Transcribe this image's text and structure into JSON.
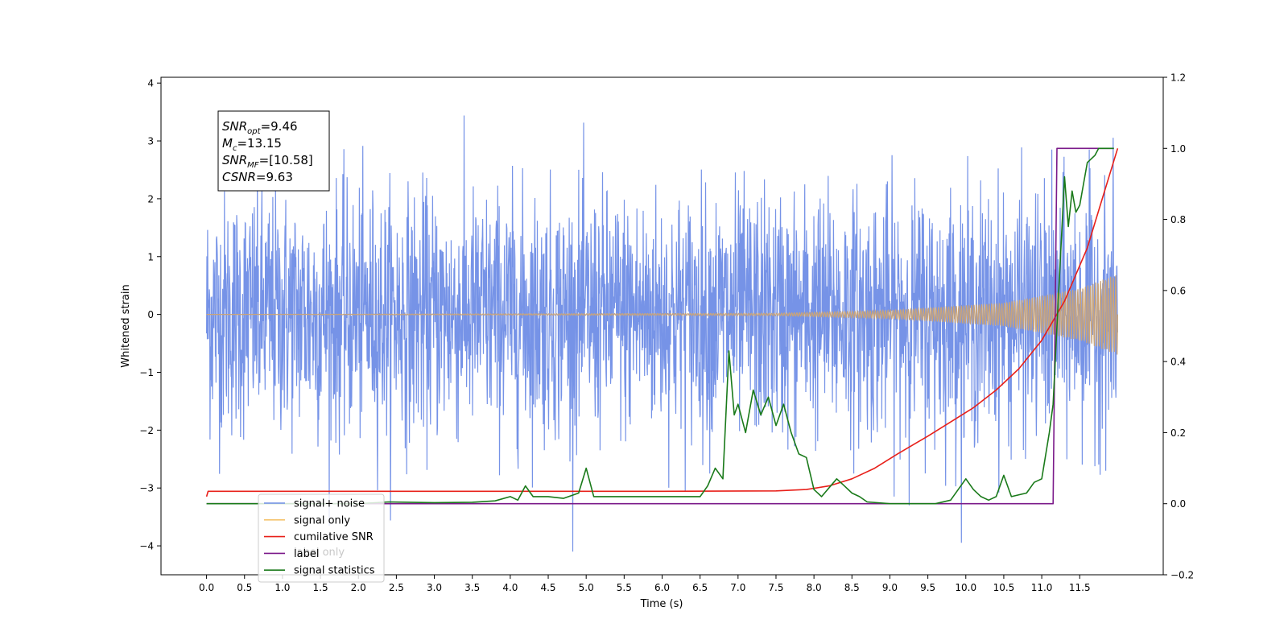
{
  "chart_data": {
    "type": "line",
    "title": "",
    "xlabel": "Time (s)",
    "ylabel_left": "Whitened strain",
    "ylabel_right": "",
    "xlim": [
      -0.6,
      12.6
    ],
    "ylim_left": [
      -4.5,
      4.1
    ],
    "ylim_right": [
      -0.2,
      1.2
    ],
    "x_ticks": [
      0.0,
      0.5,
      1.0,
      1.5,
      2.0,
      2.5,
      3.0,
      3.5,
      4.0,
      4.5,
      5.0,
      5.5,
      6.0,
      6.5,
      7.0,
      7.5,
      8.0,
      8.5,
      9.0,
      9.5,
      10.0,
      10.5,
      11.0,
      11.5
    ],
    "x_tick_labels": [
      "0.0",
      "0.5",
      "1.0",
      "1.5",
      "2.0",
      "2.5",
      "3.0",
      "3.5",
      "4.0",
      "4.5",
      "5.0",
      "5.5",
      "6.0",
      "6.5",
      "7.0",
      "7.5",
      "8.0",
      "8.5",
      "9.0",
      "9.5",
      "10.0",
      "10.5",
      "11.0",
      "11.5"
    ],
    "y_ticks_left": [
      4,
      3,
      2,
      1,
      0,
      -1,
      -2,
      -3,
      -4
    ],
    "y_tick_labels_left": [
      "4",
      "3",
      "2",
      "1",
      "0",
      "−1",
      "−2",
      "−3",
      "−4"
    ],
    "y_ticks_right": [
      1.2,
      1.0,
      0.8,
      0.6,
      0.4,
      0.2,
      0.0,
      -0.2
    ],
    "y_tick_labels_right": [
      "1.2",
      "1.0",
      "0.8",
      "0.6",
      "0.4",
      "0.2",
      "0.0",
      "−0.2"
    ],
    "grid": false,
    "legend_position": "lower-left",
    "legend": [
      {
        "label": "signal+ noise",
        "color": "#6f8de6"
      },
      {
        "label": "signal only",
        "color": "#f5c46e"
      },
      {
        "label": "cumilative SNR",
        "color": "#e8201a"
      },
      {
        "label": "label",
        "color": "#7b1a8a"
      },
      {
        "label": "signal statistics",
        "color": "#1a7a1a"
      }
    ],
    "hidden_legend_text": "label only",
    "annotation": {
      "lines": [
        {
          "base": "SNR",
          "sub": "opt",
          "value": "=9.46"
        },
        {
          "base": "M",
          "sub": "c",
          "value": "=13.15"
        },
        {
          "base": "SNR",
          "sub": "MF",
          "value": "=[10.58]"
        },
        {
          "base": "CSNR",
          "sub": "",
          "value": "=9.63"
        }
      ]
    },
    "series": [
      {
        "name": "signal+ noise",
        "axis": "left",
        "color": "#6f8de6",
        "style": "noise",
        "x_range": [
          0.0,
          12.0
        ],
        "envelope": {
          "upper": 3.7,
          "lower": -4.1
        }
      },
      {
        "name": "signal only",
        "axis": "left",
        "color": "#c9a47a",
        "style": "chirp",
        "x_range": [
          0.0,
          12.0
        ],
        "amplitude": {
          "x": [
            0.0,
            7.5,
            9.0,
            10.5,
            11.5,
            12.0
          ],
          "y": [
            0.0,
            0.02,
            0.07,
            0.2,
            0.45,
            0.7
          ]
        }
      },
      {
        "name": "cumilative SNR",
        "axis": "right",
        "color": "#e8201a",
        "x": [
          0.0,
          0.02,
          0.5,
          2.0,
          4.0,
          6.0,
          7.5,
          7.9,
          8.2,
          8.5,
          8.8,
          9.1,
          9.5,
          9.8,
          10.1,
          10.4,
          10.7,
          11.0,
          11.3,
          11.6,
          11.8,
          12.0
        ],
        "y": [
          0.02,
          0.035,
          0.035,
          0.035,
          0.035,
          0.035,
          0.036,
          0.04,
          0.05,
          0.07,
          0.1,
          0.14,
          0.19,
          0.23,
          0.27,
          0.32,
          0.38,
          0.46,
          0.57,
          0.72,
          0.86,
          1.0
        ]
      },
      {
        "name": "label",
        "axis": "right",
        "color": "#7b1a8a",
        "x": [
          0.0,
          11.15,
          11.2,
          11.95
        ],
        "y": [
          0.0,
          0.0,
          1.0,
          1.0
        ]
      },
      {
        "name": "signal statistics",
        "axis": "right",
        "color": "#1a7a1a",
        "x": [
          0.0,
          2.0,
          2.4,
          3.0,
          3.5,
          3.8,
          4.0,
          4.1,
          4.2,
          4.3,
          4.5,
          4.7,
          4.9,
          5.0,
          5.1,
          5.5,
          6.0,
          6.5,
          6.6,
          6.7,
          6.8,
          6.88,
          6.95,
          7.0,
          7.1,
          7.2,
          7.3,
          7.4,
          7.5,
          7.6,
          7.7,
          7.8,
          7.9,
          8.0,
          8.1,
          8.3,
          8.4,
          8.5,
          8.6,
          8.7,
          9.0,
          9.6,
          9.8,
          10.0,
          10.1,
          10.2,
          10.3,
          10.4,
          10.5,
          10.6,
          10.8,
          10.9,
          11.0,
          11.1,
          11.15,
          11.2,
          11.3,
          11.35,
          11.4,
          11.45,
          11.5,
          11.6,
          11.7,
          11.75,
          11.8,
          11.95
        ],
        "y": [
          0.0,
          0.0,
          0.005,
          0.003,
          0.004,
          0.008,
          0.02,
          0.01,
          0.05,
          0.02,
          0.02,
          0.015,
          0.03,
          0.1,
          0.02,
          0.02,
          0.02,
          0.02,
          0.05,
          0.1,
          0.07,
          0.43,
          0.25,
          0.28,
          0.2,
          0.32,
          0.25,
          0.3,
          0.22,
          0.28,
          0.2,
          0.14,
          0.13,
          0.04,
          0.02,
          0.07,
          0.05,
          0.03,
          0.02,
          0.005,
          0.0,
          0.0,
          0.01,
          0.07,
          0.04,
          0.02,
          0.01,
          0.02,
          0.08,
          0.02,
          0.03,
          0.06,
          0.07,
          0.2,
          0.28,
          0.5,
          0.92,
          0.78,
          0.88,
          0.82,
          0.84,
          0.96,
          0.98,
          1.0,
          1.0,
          1.0
        ]
      }
    ]
  }
}
